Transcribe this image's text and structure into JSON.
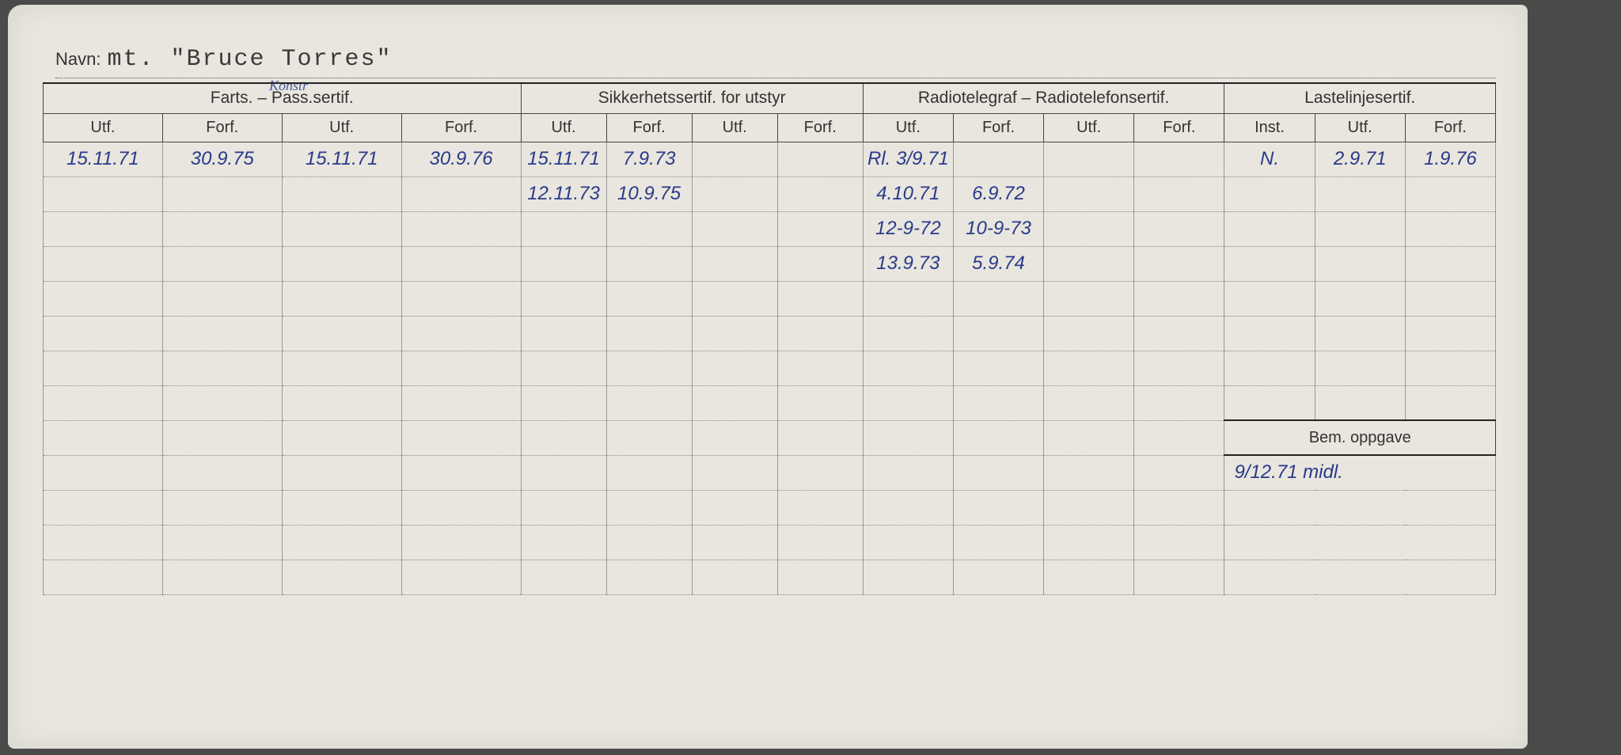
{
  "name_label": "Navn:",
  "name_value": "mt. \"Bruce Torres\"",
  "annotation_konstr": "Konstr",
  "groups": [
    {
      "label": "Farts. – Pass.sertif.",
      "span": 4
    },
    {
      "label": "Sikkerhetssertif. for utstyr",
      "span": 4
    },
    {
      "label": "Radiotelegraf – Radiotelefonsertif.",
      "span": 4
    },
    {
      "label": "Lastelinjesertif.",
      "span": 3
    }
  ],
  "subheaders": [
    "Utf.",
    "Forf.",
    "Utf.",
    "Forf.",
    "Utf.",
    "Forf.",
    "Utf.",
    "Forf.",
    "Utf.",
    "Forf.",
    "Utf.",
    "Forf.",
    "Inst.",
    "Utf.",
    "Forf."
  ],
  "rows": [
    [
      "15.11.71",
      "30.9.75",
      "15.11.71",
      "30.9.76",
      "15.11.71",
      "7.9.73",
      "",
      "",
      "Rl. 3/9.71",
      "",
      "",
      "",
      "N.",
      "2.9.71",
      "1.9.76"
    ],
    [
      "",
      "",
      "",
      "",
      "12.11.73",
      "10.9.75",
      "",
      "",
      "4.10.71",
      "6.9.72",
      "",
      "",
      "",
      "",
      ""
    ],
    [
      "",
      "",
      "",
      "",
      "",
      "",
      "",
      "",
      "12-9-72",
      "10-9-73",
      "",
      "",
      "",
      "",
      ""
    ],
    [
      "",
      "",
      "",
      "",
      "",
      "",
      "",
      "",
      "13.9.73",
      "5.9.74",
      "",
      "",
      "",
      "",
      ""
    ],
    [
      "",
      "",
      "",
      "",
      "",
      "",
      "",
      "",
      "",
      "",
      "",
      "",
      "",
      "",
      ""
    ],
    [
      "",
      "",
      "",
      "",
      "",
      "",
      "",
      "",
      "",
      "",
      "",
      "",
      "",
      "",
      ""
    ],
    [
      "",
      "",
      "",
      "",
      "",
      "",
      "",
      "",
      "",
      "",
      "",
      "",
      "",
      "",
      ""
    ],
    [
      "",
      "",
      "",
      "",
      "",
      "",
      "",
      "",
      "",
      "",
      "",
      "",
      "",
      "",
      ""
    ]
  ],
  "bem_header": "Bem. oppgave",
  "bem_rows": [
    "9/12.71 midl.",
    "",
    "",
    ""
  ],
  "blank_tail_rows": 4,
  "colors": {
    "card_bg": "#e8e6de",
    "page_bg": "#4a4a48",
    "ink": "#2a3a8a",
    "rule": "#444"
  }
}
